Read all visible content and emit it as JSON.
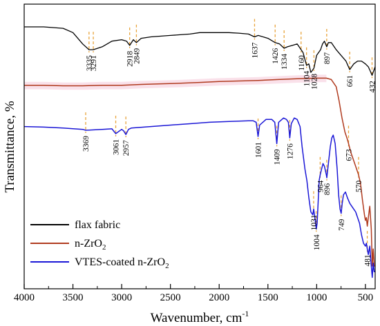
{
  "chart_data": {
    "type": "line",
    "xlabel": "Wavenumber, cm",
    "xlabel_sup": "-1",
    "ylabel": "Transmittance, %",
    "xlim": [
      4000,
      400
    ],
    "ylim": [
      0,
      100
    ],
    "x_ticks": [
      4000,
      3500,
      3000,
      2500,
      2000,
      1500,
      1000,
      500
    ],
    "y_ticks_visible": false,
    "grid": false,
    "legend_position": "bottom-left",
    "series": [
      {
        "name": "flax fabric",
        "color": "#000000",
        "points": [
          [
            4000,
            92
          ],
          [
            3800,
            92
          ],
          [
            3600,
            91.5
          ],
          [
            3500,
            90
          ],
          [
            3400,
            86
          ],
          [
            3335,
            84
          ],
          [
            3291,
            84
          ],
          [
            3200,
            85
          ],
          [
            3100,
            87
          ],
          [
            3000,
            87.5
          ],
          [
            2950,
            87
          ],
          [
            2918,
            85.5
          ],
          [
            2880,
            87.5
          ],
          [
            2849,
            86.5
          ],
          [
            2800,
            88
          ],
          [
            2700,
            88.5
          ],
          [
            2500,
            89
          ],
          [
            2300,
            89.5
          ],
          [
            2200,
            90
          ],
          [
            2100,
            90
          ],
          [
            2000,
            90
          ],
          [
            1900,
            90
          ],
          [
            1800,
            89.8
          ],
          [
            1700,
            89.5
          ],
          [
            1637,
            88.5
          ],
          [
            1600,
            89
          ],
          [
            1500,
            88
          ],
          [
            1426,
            86.5
          ],
          [
            1380,
            86
          ],
          [
            1334,
            84.5
          ],
          [
            1300,
            85
          ],
          [
            1250,
            85.5
          ],
          [
            1200,
            86
          ],
          [
            1160,
            84
          ],
          [
            1140,
            83
          ],
          [
            1104,
            78.5
          ],
          [
            1080,
            79
          ],
          [
            1060,
            76
          ],
          [
            1028,
            77.5
          ],
          [
            1000,
            82
          ],
          [
            960,
            84
          ],
          [
            940,
            86
          ],
          [
            920,
            87
          ],
          [
            897,
            85
          ],
          [
            880,
            86.5
          ],
          [
            850,
            86.5
          ],
          [
            800,
            84
          ],
          [
            750,
            82
          ],
          [
            700,
            80
          ],
          [
            661,
            77
          ],
          [
            620,
            79
          ],
          [
            580,
            80
          ],
          [
            540,
            80
          ],
          [
            500,
            79
          ],
          [
            470,
            78
          ],
          [
            450,
            76.5
          ],
          [
            432,
            75
          ],
          [
            400,
            78
          ]
        ]
      },
      {
        "name": "n-ZrO2",
        "name_base": "n-ZrO",
        "name_sub": "2",
        "color": "#b03a1e",
        "points": [
          [
            4000,
            71.5
          ],
          [
            3800,
            71.5
          ],
          [
            3600,
            71.3
          ],
          [
            3400,
            71.3
          ],
          [
            3200,
            71.5
          ],
          [
            3000,
            71.5
          ],
          [
            2800,
            71.8
          ],
          [
            2600,
            72
          ],
          [
            2400,
            72.2
          ],
          [
            2200,
            72.5
          ],
          [
            2000,
            72.8
          ],
          [
            1800,
            73
          ],
          [
            1600,
            73.2
          ],
          [
            1400,
            73.5
          ],
          [
            1200,
            73.8
          ],
          [
            1000,
            74
          ],
          [
            900,
            74
          ],
          [
            850,
            73.5
          ],
          [
            800,
            71
          ],
          [
            770,
            66
          ],
          [
            740,
            60
          ],
          [
            710,
            55
          ],
          [
            690,
            53
          ],
          [
            673,
            51
          ],
          [
            650,
            48
          ],
          [
            620,
            45
          ],
          [
            600,
            43
          ],
          [
            590,
            42
          ],
          [
            570,
            40
          ],
          [
            550,
            37
          ],
          [
            530,
            31
          ],
          [
            510,
            26
          ],
          [
            500,
            24
          ],
          [
            490,
            25
          ],
          [
            481,
            22
          ],
          [
            470,
            25
          ],
          [
            455,
            29
          ],
          [
            440,
            21
          ],
          [
            430,
            8
          ],
          [
            420,
            14
          ],
          [
            410,
            8
          ],
          [
            400,
            8
          ]
        ]
      },
      {
        "name": "VTES-coated n-ZrO2",
        "name_base": "VTES-coated n-ZrO",
        "name_sub": "2",
        "color": "#1a16d6",
        "points": [
          [
            4000,
            57
          ],
          [
            3800,
            56.8
          ],
          [
            3600,
            56.5
          ],
          [
            3400,
            56
          ],
          [
            3369,
            55.7
          ],
          [
            3300,
            55.8
          ],
          [
            3200,
            56
          ],
          [
            3100,
            56.2
          ],
          [
            3061,
            54.5
          ],
          [
            3000,
            56
          ],
          [
            2980,
            55.5
          ],
          [
            2957,
            54.2
          ],
          [
            2930,
            56
          ],
          [
            2900,
            56.5
          ],
          [
            2700,
            57
          ],
          [
            2500,
            57.5
          ],
          [
            2300,
            58
          ],
          [
            2100,
            58.5
          ],
          [
            1900,
            58.8
          ],
          [
            1700,
            59
          ],
          [
            1650,
            59
          ],
          [
            1620,
            58.5
          ],
          [
            1601,
            53.5
          ],
          [
            1585,
            57.5
          ],
          [
            1520,
            59.5
          ],
          [
            1460,
            59.5
          ],
          [
            1430,
            58.5
          ],
          [
            1409,
            51
          ],
          [
            1390,
            58.5
          ],
          [
            1340,
            60
          ],
          [
            1310,
            59.5
          ],
          [
            1290,
            58.5
          ],
          [
            1276,
            53
          ],
          [
            1260,
            58
          ],
          [
            1230,
            60
          ],
          [
            1200,
            59.5
          ],
          [
            1170,
            57
          ],
          [
            1150,
            50
          ],
          [
            1120,
            42
          ],
          [
            1100,
            38
          ],
          [
            1080,
            32
          ],
          [
            1060,
            27
          ],
          [
            1040,
            26
          ],
          [
            1031,
            28
          ],
          [
            1015,
            24
          ],
          [
            1004,
            21
          ],
          [
            995,
            23
          ],
          [
            985,
            30
          ],
          [
            975,
            38
          ],
          [
            964,
            40
          ],
          [
            950,
            42
          ],
          [
            935,
            44
          ],
          [
            920,
            43
          ],
          [
            900,
            40
          ],
          [
            896,
            39
          ],
          [
            880,
            44
          ],
          [
            860,
            50
          ],
          [
            845,
            53
          ],
          [
            830,
            54
          ],
          [
            810,
            51
          ],
          [
            790,
            42
          ],
          [
            775,
            33
          ],
          [
            760,
            28
          ],
          [
            749,
            26.5
          ],
          [
            738,
            30
          ],
          [
            725,
            33
          ],
          [
            705,
            34
          ],
          [
            685,
            32
          ],
          [
            660,
            30
          ],
          [
            640,
            29
          ],
          [
            620,
            28
          ],
          [
            600,
            27
          ],
          [
            580,
            25
          ],
          [
            560,
            23
          ],
          [
            540,
            19
          ],
          [
            520,
            16
          ],
          [
            500,
            15
          ],
          [
            490,
            16
          ],
          [
            481,
            14
          ],
          [
            470,
            12
          ],
          [
            455,
            15
          ],
          [
            445,
            10
          ],
          [
            430,
            4
          ],
          [
            420,
            9
          ],
          [
            410,
            6
          ],
          [
            400,
            6
          ]
        ]
      }
    ],
    "annotations": [
      {
        "series": 0,
        "x": 3335,
        "label": "3335"
      },
      {
        "series": 0,
        "x": 3291,
        "label": "3291"
      },
      {
        "series": 0,
        "x": 2918,
        "label": "2918"
      },
      {
        "series": 0,
        "x": 2849,
        "label": "2849"
      },
      {
        "series": 0,
        "x": 1637,
        "label": "1637"
      },
      {
        "series": 0,
        "x": 1426,
        "label": "1426"
      },
      {
        "series": 0,
        "x": 1334,
        "label": "1334"
      },
      {
        "series": 0,
        "x": 1160,
        "label": "1160"
      },
      {
        "series": 0,
        "x": 1104,
        "label": "1104"
      },
      {
        "series": 0,
        "x": 1028,
        "label": "1028"
      },
      {
        "series": 0,
        "x": 897,
        "label": "897"
      },
      {
        "series": 0,
        "x": 661,
        "label": "661"
      },
      {
        "series": 0,
        "x": 432,
        "label": "432"
      },
      {
        "series": 2,
        "x": 3369,
        "label": "3369"
      },
      {
        "series": 2,
        "x": 3061,
        "label": "3061"
      },
      {
        "series": 2,
        "x": 2957,
        "label": "2957"
      },
      {
        "series": 2,
        "x": 1601,
        "label": "1601"
      },
      {
        "series": 2,
        "x": 1409,
        "label": "1409"
      },
      {
        "series": 2,
        "x": 1276,
        "label": "1276"
      },
      {
        "series": 2,
        "x": 1031,
        "label": "1031"
      },
      {
        "series": 2,
        "x": 1004,
        "label": "1004"
      },
      {
        "series": 2,
        "x": 964,
        "label": "964"
      },
      {
        "series": 2,
        "x": 896,
        "label": "896"
      },
      {
        "series": 2,
        "x": 749,
        "label": "749"
      },
      {
        "series": 1,
        "x": 673,
        "label": "673"
      },
      {
        "series": 1,
        "x": 570,
        "label": "570"
      },
      {
        "series": 2,
        "x": 481,
        "label": "481"
      }
    ]
  }
}
